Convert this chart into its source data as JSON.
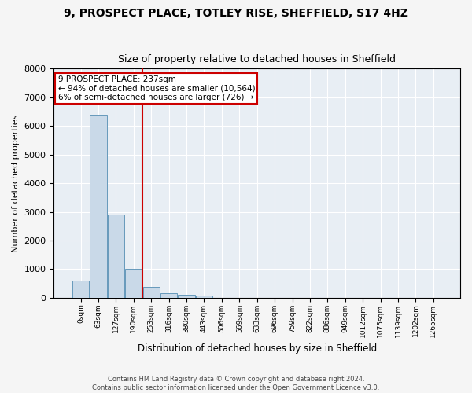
{
  "title": "9, PROSPECT PLACE, TOTLEY RISE, SHEFFIELD, S17 4HZ",
  "subtitle": "Size of property relative to detached houses in Sheffield",
  "xlabel": "Distribution of detached houses by size in Sheffield",
  "ylabel": "Number of detached properties",
  "bin_labels": [
    "0sqm",
    "63sqm",
    "127sqm",
    "190sqm",
    "253sqm",
    "316sqm",
    "380sqm",
    "443sqm",
    "506sqm",
    "569sqm",
    "633sqm",
    "696sqm",
    "759sqm",
    "822sqm",
    "886sqm",
    "949sqm",
    "1012sqm",
    "1075sqm",
    "1139sqm",
    "1202sqm",
    "1265sqm"
  ],
  "bar_values": [
    600,
    6400,
    2900,
    1000,
    380,
    150,
    100,
    75,
    0,
    0,
    0,
    0,
    0,
    0,
    0,
    0,
    0,
    0,
    0,
    0,
    0
  ],
  "bar_color": "#c9d9e8",
  "bar_edge_color": "#6699bb",
  "vline_x": 3.5,
  "vline_color": "#cc0000",
  "annotation_text": "9 PROSPECT PLACE: 237sqm\n← 94% of detached houses are smaller (10,564)\n6% of semi-detached houses are larger (726) →",
  "annotation_box_color": "#cc0000",
  "ylim": [
    0,
    8000
  ],
  "yticks": [
    0,
    1000,
    2000,
    3000,
    4000,
    5000,
    6000,
    7000,
    8000
  ],
  "plot_bg_color": "#e8eef4",
  "fig_bg_color": "#f5f5f5",
  "grid_color": "#ffffff",
  "footer_line1": "Contains HM Land Registry data © Crown copyright and database right 2024.",
  "footer_line2": "Contains public sector information licensed under the Open Government Licence v3.0."
}
